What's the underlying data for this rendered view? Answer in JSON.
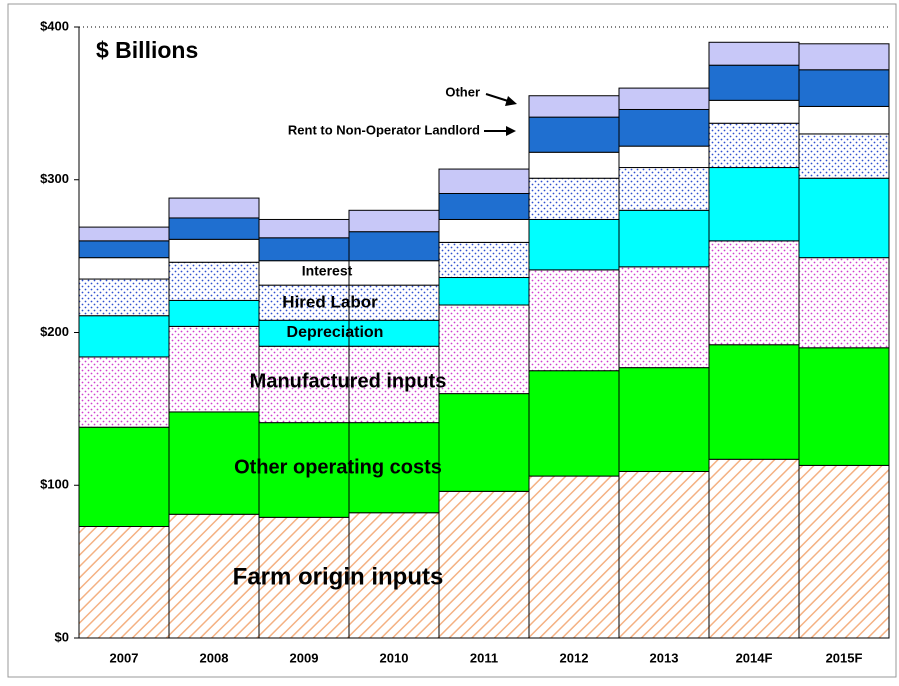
{
  "chart_data": {
    "type": "stacked_bar",
    "title": "$ Billions",
    "categories": [
      "2007",
      "2008",
      "2009",
      "2010",
      "2011",
      "2012",
      "2013",
      "2014F",
      "2015F"
    ],
    "series": [
      {
        "name": "Farm origin inputs",
        "color": "#f4b183",
        "pattern": "hatch",
        "values": [
          73,
          81,
          79,
          82,
          96,
          106,
          109,
          117,
          113
        ]
      },
      {
        "name": "Other operating costs",
        "color": "#00ff00",
        "pattern": "solid",
        "values": [
          65,
          67,
          62,
          59,
          64,
          69,
          68,
          75,
          77
        ]
      },
      {
        "name": "Manufactured inputs",
        "color": "#d040d0",
        "pattern": "dots",
        "values": [
          46,
          56,
          50,
          50,
          58,
          66,
          66,
          68,
          59
        ]
      },
      {
        "name": "Depreciation",
        "color": "#00ffff",
        "pattern": "solid",
        "values": [
          27,
          17,
          17,
          17,
          18,
          33,
          37,
          48,
          52
        ]
      },
      {
        "name": "Hired Labor",
        "color": "#3050d0",
        "pattern": "dots",
        "values": [
          24,
          25,
          23,
          23,
          23,
          27,
          28,
          29,
          29
        ]
      },
      {
        "name": "Interest",
        "color": "#ffffff",
        "pattern": "solid",
        "values": [
          14,
          15,
          16,
          16,
          15,
          17,
          14,
          15,
          18
        ]
      },
      {
        "name": "Rent to Non-Operator Landlord",
        "color": "#1f6fd0",
        "pattern": "solid",
        "values": [
          11,
          14,
          15,
          19,
          17,
          23,
          24,
          23,
          24
        ]
      },
      {
        "name": "Other",
        "color": "#c8c8f8",
        "pattern": "solid",
        "values": [
          9,
          13,
          12,
          14,
          16,
          14,
          14,
          15,
          17
        ]
      }
    ],
    "ylim": [
      0,
      400
    ],
    "yticks": [
      {
        "value": 0,
        "label": "$0"
      },
      {
        "value": 100,
        "label": "$100"
      },
      {
        "value": 200,
        "label": "$200"
      },
      {
        "value": 300,
        "label": "$300"
      },
      {
        "value": 400,
        "label": "$400"
      }
    ]
  }
}
